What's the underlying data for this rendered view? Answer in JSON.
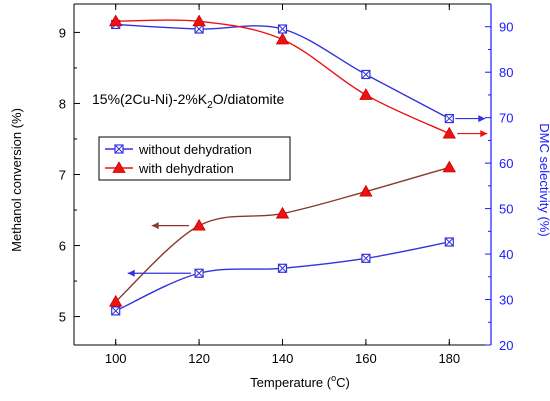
{
  "chart_data": {
    "type": "line",
    "annotation": {
      "main": "15%(2Cu-Ni)-2%K",
      "sub": "2",
      "rest": "O/diatomite"
    },
    "x": [
      100,
      120,
      140,
      160,
      180
    ],
    "x_ticks": [
      "100",
      "120",
      "140",
      "160",
      "180"
    ],
    "xlim": [
      90,
      190
    ],
    "xlabel": {
      "prefix": "Temperature (",
      "sup": "o",
      "suffix": "C)"
    },
    "y_left": {
      "label": "Methanol conversion (%)",
      "lim": [
        4.6,
        9.4
      ],
      "ticks": [
        "5",
        "6",
        "7",
        "8",
        "9"
      ],
      "color": "#000000"
    },
    "y_right": {
      "label": "DMC selectivity (%)",
      "lim": [
        20,
        95
      ],
      "ticks": [
        "20",
        "30",
        "40",
        "50",
        "60",
        "70",
        "80",
        "90"
      ],
      "color": "#1a1aff"
    },
    "series": [
      {
        "name": "without dehydration",
        "axis": "right",
        "marker": "square-x",
        "color": "#3333dd",
        "values": [
          90.5,
          89.5,
          89.5,
          79.5,
          69.8
        ]
      },
      {
        "name": "with dehydration",
        "axis": "right",
        "marker": "triangle",
        "color": "#ee1111",
        "values": [
          91.2,
          91.2,
          87.2,
          75.0,
          66.5
        ]
      },
      {
        "name": "without dehydration",
        "axis": "left",
        "marker": "square-x",
        "color": "#3333dd",
        "values": [
          5.08,
          5.61,
          5.68,
          5.82,
          6.05
        ]
      },
      {
        "name": "with dehydration",
        "axis": "left",
        "marker": "triangle",
        "color": "#8b3a2a",
        "values": [
          5.21,
          6.28,
          6.45,
          6.76,
          7.1
        ]
      }
    ],
    "legend": {
      "placement": "center-left",
      "entries": [
        {
          "label": "without dehydration",
          "marker": "square-x",
          "color": "#3333dd"
        },
        {
          "label": "with dehydration",
          "marker": "triangle",
          "color": "#ee1111"
        }
      ]
    },
    "grid": false
  }
}
